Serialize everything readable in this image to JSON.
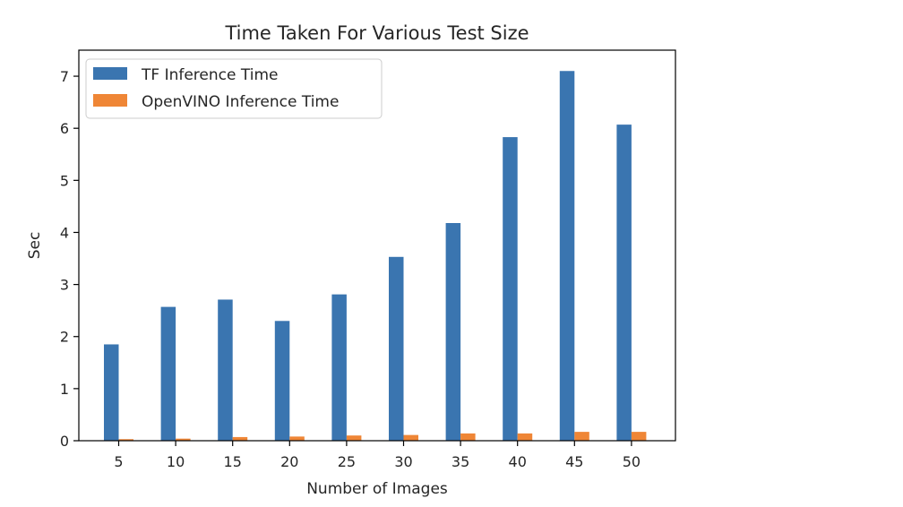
{
  "chart_data": {
    "type": "bar",
    "title": "Time Taken For Various Test Size",
    "xlabel": "Number of Images",
    "ylabel": "Sec",
    "categories": [
      "5",
      "10",
      "15",
      "20",
      "25",
      "30",
      "35",
      "40",
      "45",
      "50"
    ],
    "series": [
      {
        "name": "TF Inference Time",
        "color": "#3a75b0",
        "values": [
          1.85,
          2.57,
          2.71,
          2.3,
          2.81,
          3.53,
          4.18,
          5.83,
          7.1,
          6.07
        ]
      },
      {
        "name": "OpenVINO Inference Time",
        "color": "#ef8636",
        "values": [
          0.03,
          0.04,
          0.07,
          0.08,
          0.1,
          0.11,
          0.14,
          0.14,
          0.17,
          0.17
        ]
      }
    ],
    "ylim": [
      0,
      7.5
    ],
    "yticks": [
      0,
      1,
      2,
      3,
      4,
      5,
      6,
      7
    ],
    "grid": false,
    "legend_position": "upper-left"
  }
}
